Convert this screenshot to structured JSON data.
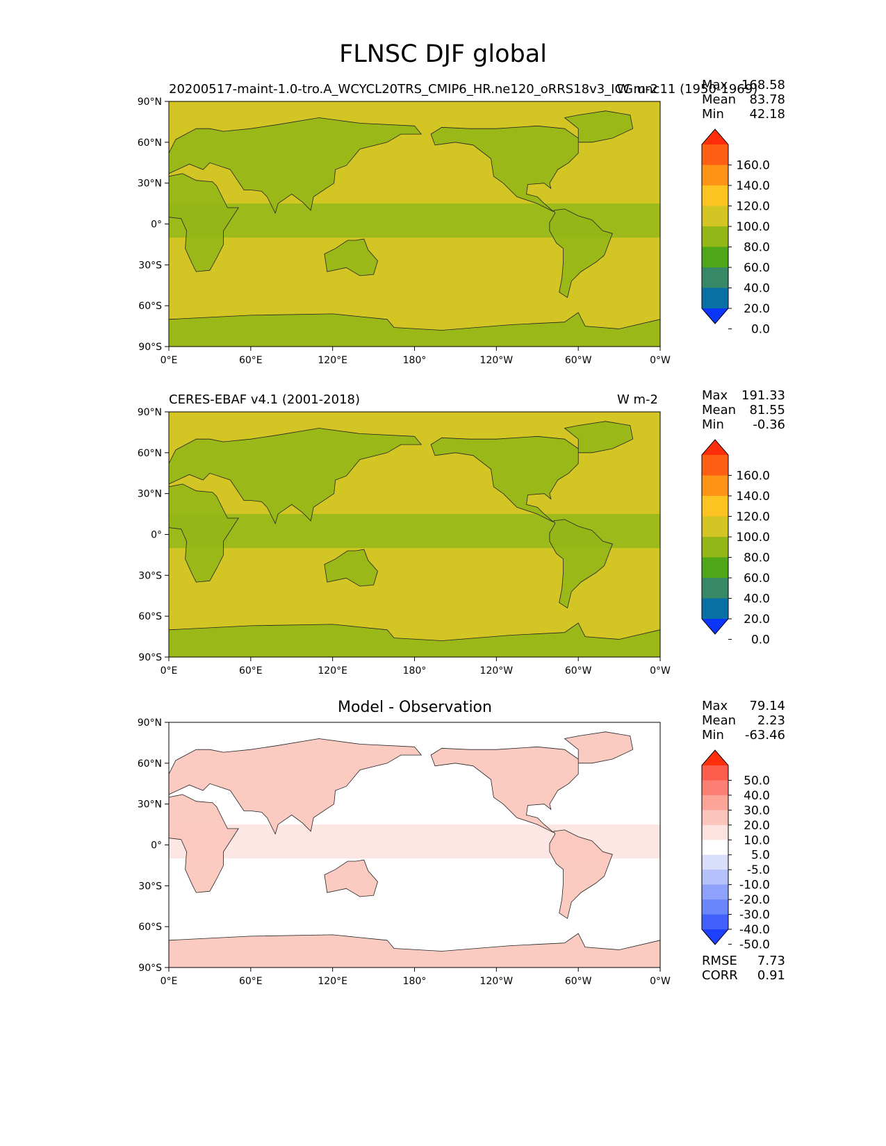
{
  "figure": {
    "title": "FLNSC DJF global"
  },
  "panels": [
    {
      "left_title": "20200517-maint-1.0-tro.A_WCYCL20TRS_CMIP6_HR.ne120_oRRS18v3_ICG.unc11 (1950-1969)",
      "right_title": "W m-2",
      "stats": {
        "max_label": "Max",
        "max": "168.58",
        "mean_label": "Mean",
        "mean": "83.78",
        "min_label": "Min",
        "min": "42.18"
      },
      "colorbar": {
        "ticks": [
          "160.0",
          "140.0",
          "120.0",
          "100.0",
          "80.0",
          "60.0",
          "40.0",
          "20.0",
          "0.0"
        ],
        "colors": [
          "#fe2d0a",
          "#fe5f14",
          "#fd9317",
          "#fdc320",
          "#d2c524",
          "#93b717",
          "#4ea618",
          "#378866",
          "#0970a6",
          "#0b35f9"
        ]
      }
    },
    {
      "left_title": "CERES-EBAF v4.1 (2001-2018)",
      "right_title": "W m-2",
      "stats": {
        "max_label": "Max",
        "max": "191.33",
        "mean_label": "Mean",
        "mean": "81.55",
        "min_label": "Min",
        "min": "-0.36"
      },
      "colorbar": {
        "ticks": [
          "160.0",
          "140.0",
          "120.0",
          "100.0",
          "80.0",
          "60.0",
          "40.0",
          "20.0",
          "0.0"
        ],
        "colors": [
          "#fe2d0a",
          "#fe5f14",
          "#fd9317",
          "#fdc320",
          "#d2c524",
          "#93b717",
          "#4ea618",
          "#378866",
          "#0970a6",
          "#0b35f9"
        ]
      }
    },
    {
      "center_title": "Model - Observation",
      "stats": {
        "max_label": "Max",
        "max": "79.14",
        "mean_label": "Mean",
        "mean": "2.23",
        "min_label": "Min",
        "min": "-63.46"
      },
      "extra_stats": {
        "rmse_label": "RMSE",
        "rmse": "7.73",
        "corr_label": "CORR",
        "corr": "0.91"
      },
      "colorbar": {
        "ticks": [
          "50.0",
          "40.0",
          "30.0",
          "20.0",
          "10.0",
          "5.0",
          "-5.0",
          "-10.0",
          "-20.0",
          "-30.0",
          "-40.0",
          "-50.0"
        ],
        "colors": [
          "#fe2f0a",
          "#fd5d4c",
          "#fb7f72",
          "#fba497",
          "#fbc5bb",
          "#fde3df",
          "#ffffff",
          "#d9defb",
          "#b4c1fb",
          "#8ea1fb",
          "#6986fb",
          "#4261fb",
          "#1e3ffb"
        ]
      }
    }
  ],
  "axes": {
    "lat_ticks": [
      "90°N",
      "60°N",
      "30°N",
      "0°",
      "30°S",
      "60°S",
      "90°S"
    ],
    "lon_ticks": [
      "0°E",
      "60°E",
      "120°E",
      "180°",
      "120°W",
      "60°W",
      "0°W"
    ]
  },
  "chart_data": [
    {
      "type": "heatmap",
      "title": "20200517-maint-1.0-tro.A_WCYCL20TRS_CMIP6_HR.ne120_oRRS18v3_ICG.unc11 (1950-1969)",
      "units": "W m-2",
      "xlim": [
        0,
        360
      ],
      "ylim": [
        -90,
        90
      ],
      "color_levels": [
        0,
        20,
        40,
        60,
        80,
        100,
        120,
        140,
        160
      ],
      "stats": {
        "max": 168.58,
        "mean": 83.78,
        "min": 42.18
      }
    },
    {
      "type": "heatmap",
      "title": "CERES-EBAF v4.1 (2001-2018)",
      "units": "W m-2",
      "xlim": [
        0,
        360
      ],
      "ylim": [
        -90,
        90
      ],
      "color_levels": [
        0,
        20,
        40,
        60,
        80,
        100,
        120,
        140,
        160
      ],
      "stats": {
        "max": 191.33,
        "mean": 81.55,
        "min": -0.36
      }
    },
    {
      "type": "heatmap",
      "title": "Model - Observation",
      "xlim": [
        0,
        360
      ],
      "ylim": [
        -90,
        90
      ],
      "color_levels": [
        -50,
        -40,
        -30,
        -20,
        -10,
        -5,
        5,
        10,
        20,
        30,
        40,
        50
      ],
      "stats": {
        "max": 79.14,
        "mean": 2.23,
        "min": -63.46,
        "rmse": 7.73,
        "corr": 0.91
      }
    }
  ]
}
